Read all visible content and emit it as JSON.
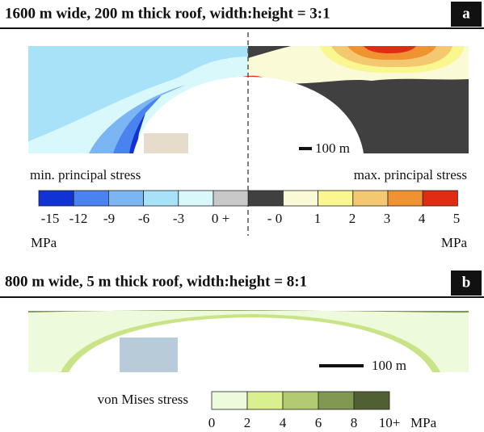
{
  "panel_a": {
    "title": "1600 m wide, 200 m thick roof, width:height = 3:1",
    "label": "a",
    "scale_bar": "100 m",
    "left_caption": "min. principal stress",
    "right_caption": "max. principal stress",
    "colorbar": {
      "colors": [
        "#1034d4",
        "#4a82f0",
        "#7cb6f2",
        "#a8e2f8",
        "#d8f8fc",
        "#c8c8c8",
        "#404040",
        "#fafad6",
        "#faf690",
        "#f4c870",
        "#ee9232",
        "#e02c12"
      ],
      "ticks": [
        "-15",
        "-12",
        "-9",
        "-6",
        "-3",
        "0 +",
        "- 0",
        "1",
        "2",
        "3",
        "4",
        "5"
      ]
    },
    "unit_left": "MPa",
    "unit_right": "MPa"
  },
  "panel_b": {
    "title": "800 m wide, 5 m thick roof, width:height = 8:1",
    "label": "b",
    "scale_bar": "100 m",
    "caption": "von Mises stress",
    "colorbar": {
      "colors": [
        "#eefadc",
        "#d8f090",
        "#b2ca72",
        "#809852",
        "#506032"
      ],
      "ticks": [
        "0",
        "2",
        "4",
        "6",
        "8",
        "10+"
      ]
    },
    "unit": "MPa"
  }
}
